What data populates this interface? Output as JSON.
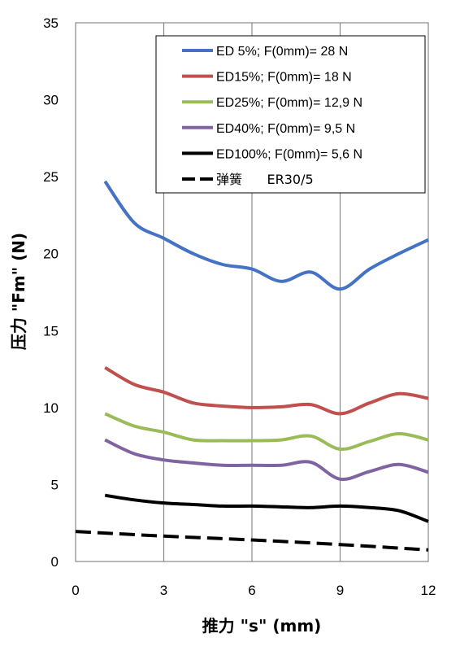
{
  "chart_data": {
    "type": "line",
    "xlabel": "推力  \"s\" (mm)",
    "ylabel": "压力  \"Fm\" (N)",
    "xlim": [
      0,
      12
    ],
    "ylim": [
      0,
      35
    ],
    "xticks": [
      0,
      3,
      6,
      9,
      12
    ],
    "yticks": [
      0,
      5,
      10,
      15,
      20,
      25,
      30,
      35
    ],
    "grid": "vertical",
    "legend_position": "top-right",
    "series": [
      {
        "name": "ED 5%; F(0mm)= 28 N",
        "color": "#4472c4",
        "dash": "solid",
        "x": [
          1,
          2,
          3,
          4,
          5,
          6,
          7,
          8,
          9,
          10,
          11,
          12
        ],
        "y": [
          24.7,
          22.0,
          21.0,
          20.0,
          19.3,
          19.0,
          18.2,
          18.8,
          17.7,
          19.0,
          20.0,
          20.9
        ]
      },
      {
        "name": "ED15%; F(0mm)= 18 N",
        "color": "#c0504d",
        "dash": "solid",
        "x": [
          1,
          2,
          3,
          4,
          5,
          6,
          7,
          8,
          9,
          10,
          11,
          12
        ],
        "y": [
          12.6,
          11.5,
          11.0,
          10.3,
          10.1,
          10.0,
          10.05,
          10.2,
          9.6,
          10.3,
          10.9,
          10.6
        ]
      },
      {
        "name": "ED25%; F(0mm)= 12,9 N",
        "color": "#9bbb59",
        "dash": "solid",
        "x": [
          1,
          2,
          3,
          4,
          5,
          6,
          7,
          8,
          9,
          10,
          11,
          12
        ],
        "y": [
          9.6,
          8.8,
          8.4,
          7.9,
          7.85,
          7.85,
          7.9,
          8.15,
          7.3,
          7.8,
          8.3,
          7.9
        ]
      },
      {
        "name": "ED40%; F(0mm)= 9,5 N",
        "color": "#8064a2",
        "dash": "solid",
        "x": [
          1,
          2,
          3,
          4,
          5,
          6,
          7,
          8,
          9,
          10,
          11,
          12
        ],
        "y": [
          7.9,
          7.0,
          6.6,
          6.4,
          6.25,
          6.25,
          6.25,
          6.45,
          5.35,
          5.85,
          6.3,
          5.8
        ]
      },
      {
        "name": "ED100%; F(0mm)= 5,6 N",
        "color": "#000000",
        "dash": "solid",
        "x": [
          1,
          2,
          3,
          4,
          5,
          6,
          7,
          8,
          9,
          10,
          11,
          12
        ],
        "y": [
          4.3,
          4.0,
          3.8,
          3.7,
          3.6,
          3.6,
          3.55,
          3.5,
          3.6,
          3.5,
          3.3,
          2.6
        ]
      },
      {
        "name": "弹簧      ER30/5",
        "color": "#000000",
        "dash": "dashed",
        "x": [
          0,
          3,
          6,
          9,
          12
        ],
        "y": [
          1.95,
          1.65,
          1.4,
          1.1,
          0.75
        ]
      }
    ]
  }
}
